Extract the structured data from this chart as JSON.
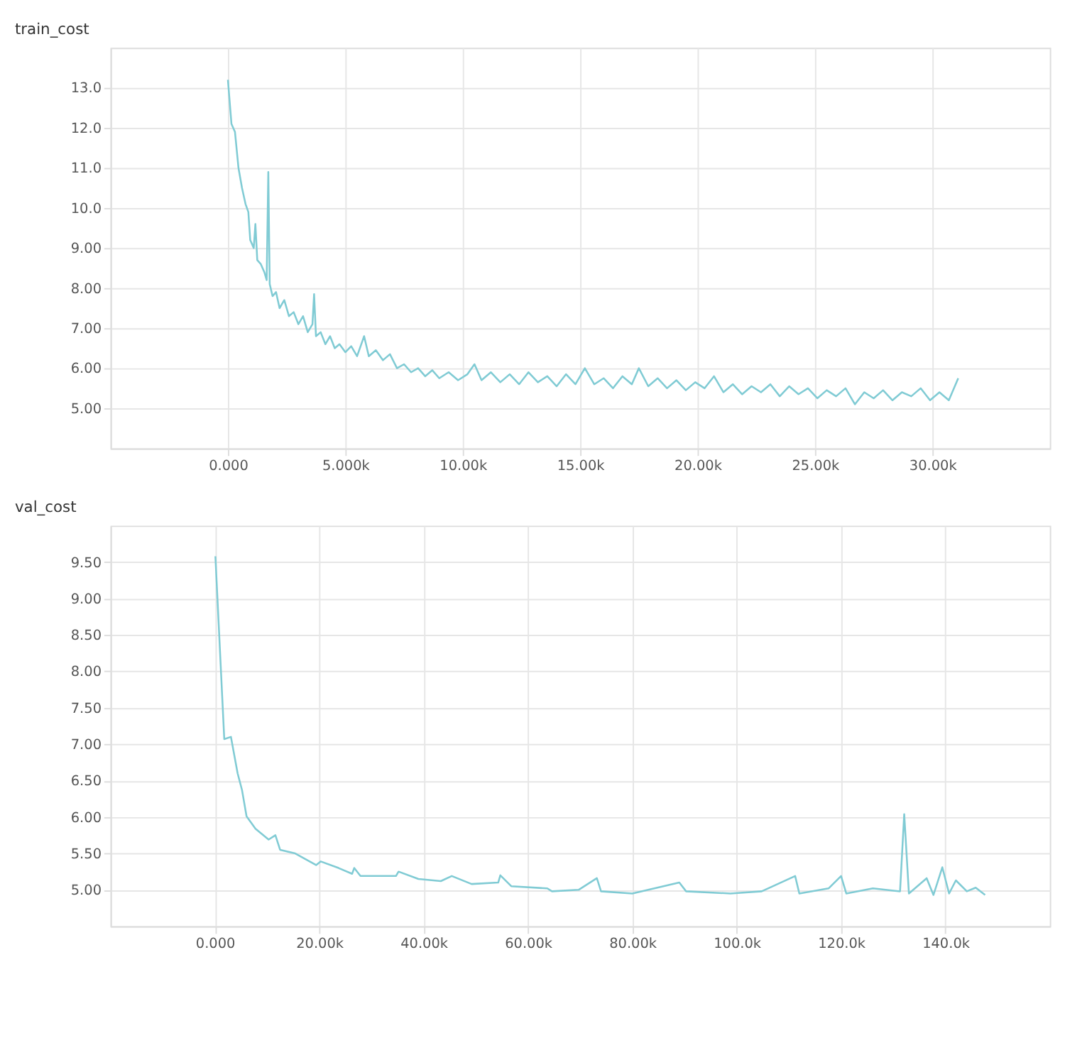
{
  "chart_data": [
    {
      "type": "line",
      "title": "train_cost",
      "grid": true,
      "marker": "none",
      "line_style": "solid",
      "xlim": [
        -5000,
        35000
      ],
      "xticks": [
        {
          "value": 0,
          "label": "0.000"
        },
        {
          "value": 5000,
          "label": "5.000k"
        },
        {
          "value": 10000,
          "label": "10.00k"
        },
        {
          "value": 15000,
          "label": "15.00k"
        },
        {
          "value": 20000,
          "label": "20.00k"
        },
        {
          "value": 25000,
          "label": "25.00k"
        },
        {
          "value": 30000,
          "label": "30.00k"
        }
      ],
      "ylim": [
        4,
        14
      ],
      "yticks": [
        {
          "value": 5,
          "label": "5.00"
        },
        {
          "value": 6,
          "label": "6.00"
        },
        {
          "value": 7,
          "label": "7.00"
        },
        {
          "value": 8,
          "label": "8.00"
        },
        {
          "value": 9,
          "label": "9.00"
        },
        {
          "value": 10,
          "label": "10.0"
        },
        {
          "value": 11,
          "label": "11.0"
        },
        {
          "value": 12,
          "label": "12.0"
        },
        {
          "value": 13,
          "label": "13.0"
        }
      ],
      "series": [
        {
          "color": "#80cbd4",
          "x": [
            0,
            150,
            300,
            450,
            600,
            750,
            870,
            950,
            1100,
            1170,
            1250,
            1400,
            1550,
            1650,
            1720,
            1780,
            1900,
            2050,
            2200,
            2400,
            2600,
            2800,
            3000,
            3200,
            3400,
            3600,
            3670,
            3750,
            3950,
            4150,
            4350,
            4550,
            4750,
            5000,
            5250,
            5500,
            5800,
            6000,
            6300,
            6600,
            6900,
            7200,
            7500,
            7800,
            8100,
            8400,
            8700,
            9000,
            9400,
            9800,
            10200,
            10500,
            10800,
            11200,
            11600,
            12000,
            12400,
            12800,
            13200,
            13600,
            14000,
            14400,
            14800,
            15200,
            15600,
            16000,
            16400,
            16800,
            17200,
            17500,
            17900,
            18300,
            18700,
            19100,
            19500,
            19900,
            20300,
            20700,
            21100,
            21500,
            21900,
            22300,
            22700,
            23100,
            23500,
            23900,
            24300,
            24700,
            25100,
            25500,
            25900,
            26300,
            26700,
            27100,
            27500,
            27900,
            28300,
            28700,
            29100,
            29500,
            29900,
            30300,
            30700,
            31100
          ],
          "values": [
            13.2,
            12.1,
            11.9,
            11.0,
            10.5,
            10.1,
            9.9,
            9.2,
            9.0,
            9.6,
            8.7,
            8.6,
            8.4,
            8.2,
            10.9,
            8.1,
            7.8,
            7.9,
            7.5,
            7.7,
            7.3,
            7.4,
            7.1,
            7.3,
            6.9,
            7.1,
            7.85,
            6.8,
            6.9,
            6.6,
            6.8,
            6.5,
            6.6,
            6.4,
            6.55,
            6.3,
            6.8,
            6.3,
            6.45,
            6.2,
            6.35,
            6.0,
            6.1,
            5.9,
            6.0,
            5.8,
            5.95,
            5.75,
            5.9,
            5.7,
            5.85,
            6.1,
            5.7,
            5.9,
            5.65,
            5.85,
            5.6,
            5.9,
            5.65,
            5.8,
            5.55,
            5.85,
            5.6,
            6.0,
            5.6,
            5.75,
            5.5,
            5.8,
            5.6,
            6.0,
            5.55,
            5.75,
            5.5,
            5.7,
            5.45,
            5.65,
            5.5,
            5.8,
            5.4,
            5.6,
            5.35,
            5.55,
            5.4,
            5.6,
            5.3,
            5.55,
            5.35,
            5.5,
            5.25,
            5.45,
            5.3,
            5.5,
            5.1,
            5.4,
            5.25,
            5.45,
            5.2,
            5.4,
            5.3,
            5.5,
            5.2,
            5.4,
            5.2,
            5.75
          ]
        }
      ]
    },
    {
      "type": "line",
      "title": "val_cost",
      "grid": true,
      "marker": "none",
      "line_style": "solid",
      "xlim": [
        -20000,
        160000
      ],
      "xticks": [
        {
          "value": 0,
          "label": "0.000"
        },
        {
          "value": 20000,
          "label": "20.00k"
        },
        {
          "value": 40000,
          "label": "40.00k"
        },
        {
          "value": 60000,
          "label": "60.00k"
        },
        {
          "value": 80000,
          "label": "80.00k"
        },
        {
          "value": 100000,
          "label": "100.0k"
        },
        {
          "value": 120000,
          "label": "120.0k"
        },
        {
          "value": 140000,
          "label": "140.0k"
        }
      ],
      "ylim": [
        4.5,
        10
      ],
      "yticks": [
        {
          "value": 5,
          "label": "5.00"
        },
        {
          "value": 5.5,
          "label": "5.50"
        },
        {
          "value": 6,
          "label": "6.00"
        },
        {
          "value": 6.5,
          "label": "6.50"
        },
        {
          "value": 7,
          "label": "7.00"
        },
        {
          "value": 7.5,
          "label": "7.50"
        },
        {
          "value": 8,
          "label": "8.00"
        },
        {
          "value": 8.5,
          "label": "8.50"
        },
        {
          "value": 9,
          "label": "9.00"
        },
        {
          "value": 9.5,
          "label": "9.50"
        }
      ],
      "series": [
        {
          "color": "#80cbd4",
          "x": [
            100,
            1800,
            3080,
            4360,
            5200,
            6070,
            7780,
            10300,
            11600,
            12500,
            15400,
            19400,
            20300,
            23700,
            26300,
            26700,
            27900,
            34700,
            35200,
            39000,
            43300,
            45400,
            49200,
            54300,
            54700,
            56800,
            63700,
            64600,
            69700,
            73200,
            74000,
            80000,
            89000,
            90300,
            98800,
            104800,
            111200,
            112000,
            117600,
            120000,
            121000,
            126100,
            131300,
            132100,
            133000,
            136400,
            137700,
            139400,
            140700,
            142000,
            144100,
            145800,
            147600
          ],
          "values": [
            9.58,
            7.07,
            7.1,
            6.6,
            6.37,
            6.01,
            5.84,
            5.69,
            5.75,
            5.55,
            5.5,
            5.34,
            5.39,
            5.3,
            5.22,
            5.3,
            5.19,
            5.19,
            5.25,
            5.15,
            5.12,
            5.19,
            5.08,
            5.1,
            5.2,
            5.05,
            5.02,
            4.98,
            5.0,
            5.16,
            4.98,
            4.95,
            5.1,
            4.98,
            4.95,
            4.98,
            5.19,
            4.95,
            5.02,
            5.19,
            4.95,
            5.02,
            4.98,
            6.04,
            4.95,
            5.16,
            4.93,
            5.31,
            4.95,
            5.13,
            4.98,
            5.03,
            4.93
          ]
        }
      ]
    }
  ]
}
